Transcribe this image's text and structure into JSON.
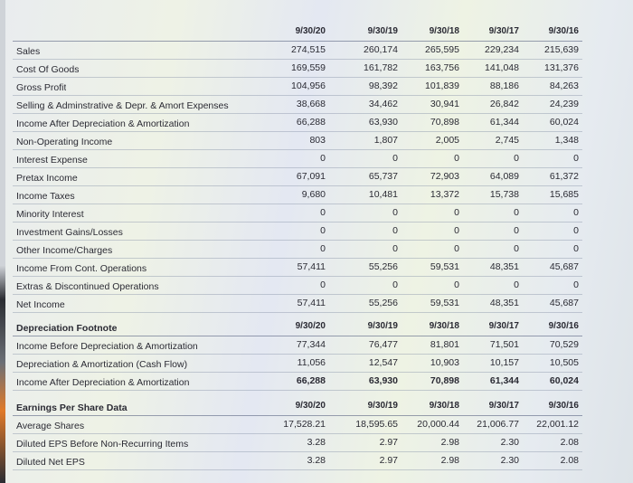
{
  "sections": [
    {
      "header": {
        "label": "",
        "dates": [
          "9/30/20",
          "9/30/19",
          "9/30/18",
          "9/30/17",
          "9/30/16"
        ]
      },
      "rows": [
        {
          "label": "Sales",
          "values": [
            "274,515",
            "260,174",
            "265,595",
            "229,234",
            "215,639"
          ]
        },
        {
          "label": "Cost Of Goods",
          "values": [
            "169,559",
            "161,782",
            "163,756",
            "141,048",
            "131,376"
          ]
        },
        {
          "label": "Gross Profit",
          "values": [
            "104,956",
            "98,392",
            "101,839",
            "88,186",
            "84,263"
          ]
        },
        {
          "label": "Selling & Adminstrative & Depr. & Amort Expenses",
          "values": [
            "38,668",
            "34,462",
            "30,941",
            "26,842",
            "24,239"
          ]
        },
        {
          "label": "Income After Depreciation & Amortization",
          "values": [
            "66,288",
            "63,930",
            "70,898",
            "61,344",
            "60,024"
          ]
        },
        {
          "label": "Non-Operating Income",
          "values": [
            "803",
            "1,807",
            "2,005",
            "2,745",
            "1,348"
          ]
        },
        {
          "label": "Interest Expense",
          "values": [
            "0",
            "0",
            "0",
            "0",
            "0"
          ]
        },
        {
          "label": "Pretax Income",
          "values": [
            "67,091",
            "65,737",
            "72,903",
            "64,089",
            "61,372"
          ]
        },
        {
          "label": "Income Taxes",
          "values": [
            "9,680",
            "10,481",
            "13,372",
            "15,738",
            "15,685"
          ]
        },
        {
          "label": "Minority Interest",
          "values": [
            "0",
            "0",
            "0",
            "0",
            "0"
          ]
        },
        {
          "label": "Investment Gains/Losses",
          "values": [
            "0",
            "0",
            "0",
            "0",
            "0"
          ]
        },
        {
          "label": "Other Income/Charges",
          "values": [
            "0",
            "0",
            "0",
            "0",
            "0"
          ]
        },
        {
          "label": "Income From Cont. Operations",
          "values": [
            "57,411",
            "55,256",
            "59,531",
            "48,351",
            "45,687"
          ]
        },
        {
          "label": "Extras & Discontinued Operations",
          "values": [
            "0",
            "0",
            "0",
            "0",
            "0"
          ]
        },
        {
          "label": "Net Income",
          "values": [
            "57,411",
            "55,256",
            "59,531",
            "48,351",
            "45,687"
          ]
        }
      ]
    },
    {
      "header": {
        "label": "Depreciation Footnote",
        "dates": [
          "9/30/20",
          "9/30/19",
          "9/30/18",
          "9/30/17",
          "9/30/16"
        ]
      },
      "rows": [
        {
          "label": "Income Before Depreciation & Amortization",
          "values": [
            "77,344",
            "76,477",
            "81,801",
            "71,501",
            "70,529"
          ]
        },
        {
          "label": "Depreciation & Amortization (Cash Flow)",
          "values": [
            "11,056",
            "12,547",
            "10,903",
            "10,157",
            "10,505"
          ]
        },
        {
          "label": "Income After Depreciation & Amortization",
          "values": [
            "66,288",
            "63,930",
            "70,898",
            "61,344",
            "60,024"
          ],
          "bold": true
        }
      ]
    },
    {
      "header": {
        "label": "Earnings Per Share Data",
        "dates": [
          "9/30/20",
          "9/30/19",
          "9/30/18",
          "9/30/17",
          "9/30/16"
        ]
      },
      "rows": [
        {
          "label": "Average Shares",
          "values": [
            "17,528.21",
            "18,595.65",
            "20,000.44",
            "21,006.77",
            "22,001.12"
          ]
        },
        {
          "label": "Diluted EPS Before Non-Recurring Items",
          "values": [
            "3.28",
            "2.97",
            "2.98",
            "2.30",
            "2.08"
          ]
        },
        {
          "label": "Diluted Net EPS",
          "values": [
            "3.28",
            "2.97",
            "2.98",
            "2.30",
            "2.08"
          ]
        }
      ]
    }
  ]
}
